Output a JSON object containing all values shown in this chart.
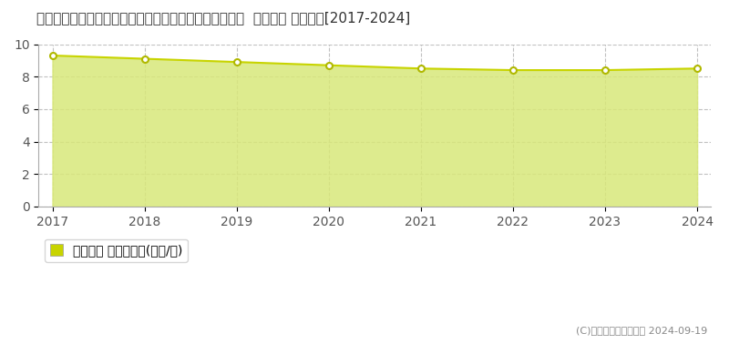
{
  "title": "宮崎県西臼杵郡高千穂町大字三田井字尾迫原７４番８外  基準地価 地価推移[2017-2024]",
  "years": [
    2017,
    2018,
    2019,
    2020,
    2021,
    2022,
    2023,
    2024
  ],
  "values": [
    9.3,
    9.1,
    8.9,
    8.7,
    8.5,
    8.4,
    8.4,
    8.5
  ],
  "ylim": [
    0,
    10
  ],
  "yticks": [
    0,
    2,
    4,
    6,
    8,
    10
  ],
  "line_color": "#c8d400",
  "fill_color": "#d8e87a",
  "fill_alpha": 0.85,
  "marker_color": "#ffffff",
  "marker_edge_color": "#b0b800",
  "grid_color": "#c0c0c0",
  "bg_color": "#ffffff",
  "plot_bg_color": "#ffffff",
  "legend_label": "基準地価 平均坪単価(万円/坪)",
  "legend_marker_color": "#c8d400",
  "copyright_text": "(C)土地価格ドットコム 2024-09-19",
  "title_fontsize": 11,
  "axis_fontsize": 10,
  "legend_fontsize": 10
}
